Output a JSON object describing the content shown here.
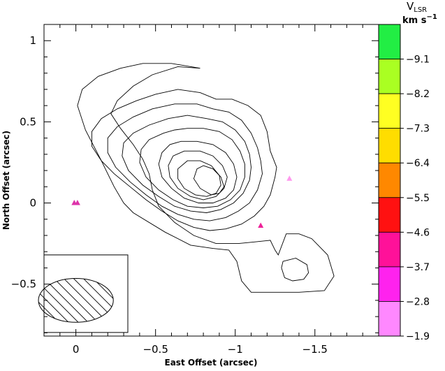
{
  "chart_data": {
    "type": "contour",
    "xlabel": "East Offset (arcsec)",
    "ylabel": "North Offset (arcsec)",
    "xlim": [
      0.2,
      -1.9
    ],
    "ylim": [
      -0.82,
      1.1
    ],
    "x_ticks": [
      0,
      -0.5,
      -1,
      -1.5
    ],
    "x_tick_labels": [
      "0",
      "−0.5",
      "−1",
      "−1.5"
    ],
    "y_ticks": [
      -0.5,
      0,
      0.5,
      1
    ],
    "y_tick_labels": [
      "−0.5",
      "0",
      "0.5",
      "1"
    ],
    "contour_peak": {
      "x": -0.87,
      "y": 0.15
    },
    "secondary_peak": {
      "x": -1.37,
      "y": -0.4
    },
    "contours": [
      {
        "level": 1,
        "points": [
          [
            -0.78,
            0.83
          ],
          [
            -0.64,
            0.84
          ],
          [
            -0.48,
            0.79
          ],
          [
            -0.36,
            0.72
          ],
          [
            -0.26,
            0.63
          ],
          [
            -0.22,
            0.55
          ],
          [
            -0.28,
            0.46
          ],
          [
            -0.36,
            0.36
          ],
          [
            -0.42,
            0.27
          ],
          [
            -0.46,
            0.18
          ],
          [
            -0.48,
            0.08
          ],
          [
            -0.52,
            -0.02
          ],
          [
            -0.62,
            -0.12
          ],
          [
            -0.74,
            -0.2
          ],
          [
            -0.88,
            -0.25
          ],
          [
            -1.02,
            -0.25
          ],
          [
            -1.12,
            -0.24
          ],
          [
            -1.22,
            -0.23
          ],
          [
            -1.25,
            -0.29
          ],
          [
            -1.27,
            -0.32
          ],
          [
            -1.32,
            -0.19
          ],
          [
            -1.4,
            -0.19
          ],
          [
            -1.48,
            -0.22
          ],
          [
            -1.58,
            -0.32
          ],
          [
            -1.62,
            -0.45
          ],
          [
            -1.56,
            -0.54
          ],
          [
            -1.4,
            -0.55
          ],
          [
            -1.1,
            -0.55
          ],
          [
            -1.04,
            -0.48
          ],
          [
            -1.01,
            -0.36
          ],
          [
            -0.96,
            -0.29
          ],
          [
            -0.86,
            -0.28
          ],
          [
            -0.72,
            -0.26
          ],
          [
            -0.56,
            -0.18
          ],
          [
            -0.36,
            -0.06
          ],
          [
            -0.3,
            0.0
          ],
          [
            -0.24,
            0.1
          ],
          [
            -0.16,
            0.26
          ],
          [
            -0.06,
            0.45
          ],
          [
            -0.01,
            0.6
          ],
          [
            -0.04,
            0.7
          ],
          [
            -0.14,
            0.78
          ],
          [
            -0.28,
            0.83
          ],
          [
            -0.42,
            0.86
          ],
          [
            -0.6,
            0.86
          ]
        ]
      },
      {
        "level": 2,
        "points": [
          [
            -0.88,
            0.64
          ],
          [
            -0.98,
            0.64
          ],
          [
            -1.08,
            0.6
          ],
          [
            -1.16,
            0.54
          ],
          [
            -1.2,
            0.44
          ],
          [
            -1.22,
            0.32
          ],
          [
            -1.26,
            0.22
          ],
          [
            -1.25,
            0.16
          ],
          [
            -1.22,
            0.05
          ],
          [
            -1.18,
            -0.02
          ],
          [
            -1.12,
            -0.08
          ],
          [
            -1.04,
            -0.13
          ],
          [
            -0.94,
            -0.16
          ],
          [
            -0.84,
            -0.17
          ],
          [
            -0.74,
            -0.15
          ],
          [
            -0.64,
            -0.11
          ],
          [
            -0.54,
            -0.05
          ],
          [
            -0.44,
            0.02
          ],
          [
            -0.34,
            0.1
          ],
          [
            -0.24,
            0.18
          ],
          [
            -0.16,
            0.26
          ],
          [
            -0.1,
            0.35
          ],
          [
            -0.1,
            0.44
          ],
          [
            -0.16,
            0.52
          ],
          [
            -0.26,
            0.58
          ],
          [
            -0.38,
            0.63
          ],
          [
            -0.5,
            0.67
          ],
          [
            -0.64,
            0.7
          ],
          [
            -0.78,
            0.68
          ]
        ]
      },
      {
        "level": 3,
        "points": [
          [
            -0.86,
            0.58
          ],
          [
            -0.96,
            0.56
          ],
          [
            -1.04,
            0.51
          ],
          [
            -1.1,
            0.43
          ],
          [
            -1.14,
            0.34
          ],
          [
            -1.16,
            0.26
          ],
          [
            -1.17,
            0.18
          ],
          [
            -1.14,
            0.08
          ],
          [
            -1.09,
            0.0
          ],
          [
            -1.02,
            -0.05
          ],
          [
            -0.94,
            -0.09
          ],
          [
            -0.84,
            -0.11
          ],
          [
            -0.74,
            -0.1
          ],
          [
            -0.64,
            -0.07
          ],
          [
            -0.54,
            -0.02
          ],
          [
            -0.44,
            0.05
          ],
          [
            -0.34,
            0.13
          ],
          [
            -0.25,
            0.22
          ],
          [
            -0.2,
            0.31
          ],
          [
            -0.2,
            0.4
          ],
          [
            -0.26,
            0.47
          ],
          [
            -0.36,
            0.53
          ],
          [
            -0.48,
            0.58
          ],
          [
            -0.62,
            0.61
          ],
          [
            -0.76,
            0.61
          ]
        ]
      },
      {
        "level": 4,
        "points": [
          [
            -0.82,
            0.52
          ],
          [
            -0.92,
            0.5
          ],
          [
            -1.0,
            0.45
          ],
          [
            -1.06,
            0.38
          ],
          [
            -1.09,
            0.3
          ],
          [
            -1.1,
            0.22
          ],
          [
            -1.09,
            0.14
          ],
          [
            -1.05,
            0.06
          ],
          [
            -0.99,
            0.0
          ],
          [
            -0.91,
            -0.04
          ],
          [
            -0.82,
            -0.06
          ],
          [
            -0.72,
            -0.05
          ],
          [
            -0.62,
            -0.02
          ],
          [
            -0.52,
            0.04
          ],
          [
            -0.42,
            0.11
          ],
          [
            -0.33,
            0.2
          ],
          [
            -0.29,
            0.29
          ],
          [
            -0.3,
            0.37
          ],
          [
            -0.36,
            0.43
          ],
          [
            -0.46,
            0.48
          ],
          [
            -0.58,
            0.52
          ],
          [
            -0.7,
            0.54
          ]
        ]
      },
      {
        "level": 5,
        "points": [
          [
            -0.7,
            0.46
          ],
          [
            -0.8,
            0.46
          ],
          [
            -0.9,
            0.44
          ],
          [
            -0.98,
            0.39
          ],
          [
            -1.03,
            0.32
          ],
          [
            -1.06,
            0.24
          ],
          [
            -1.06,
            0.16
          ],
          [
            -1.03,
            0.08
          ],
          [
            -0.97,
            0.02
          ],
          [
            -0.89,
            -0.02
          ],
          [
            -0.8,
            -0.03
          ],
          [
            -0.7,
            -0.02
          ],
          [
            -0.61,
            0.02
          ],
          [
            -0.52,
            0.08
          ],
          [
            -0.44,
            0.16
          ],
          [
            -0.4,
            0.25
          ],
          [
            -0.41,
            0.33
          ],
          [
            -0.46,
            0.39
          ],
          [
            -0.55,
            0.43
          ],
          [
            -0.62,
            0.45
          ]
        ]
      },
      {
        "level": 6,
        "points": [
          [
            -0.66,
            0.38
          ],
          [
            -0.76,
            0.38
          ],
          [
            -0.86,
            0.36
          ],
          [
            -0.94,
            0.31
          ],
          [
            -0.99,
            0.24
          ],
          [
            -1.01,
            0.16
          ],
          [
            -0.99,
            0.08
          ],
          [
            -0.94,
            0.03
          ],
          [
            -0.86,
            0.0
          ],
          [
            -0.77,
            0.0
          ],
          [
            -0.68,
            0.03
          ],
          [
            -0.6,
            0.09
          ],
          [
            -0.54,
            0.16
          ],
          [
            -0.52,
            0.24
          ],
          [
            -0.54,
            0.31
          ],
          [
            -0.59,
            0.36
          ]
        ]
      },
      {
        "level": 7,
        "points": [
          [
            -0.68,
            0.32
          ],
          [
            -0.78,
            0.32
          ],
          [
            -0.86,
            0.29
          ],
          [
            -0.92,
            0.23
          ],
          [
            -0.95,
            0.16
          ],
          [
            -0.93,
            0.09
          ],
          [
            -0.88,
            0.04
          ],
          [
            -0.8,
            0.02
          ],
          [
            -0.72,
            0.04
          ],
          [
            -0.64,
            0.09
          ],
          [
            -0.59,
            0.16
          ],
          [
            -0.58,
            0.23
          ],
          [
            -0.61,
            0.29
          ]
        ]
      },
      {
        "level": 8,
        "points": [
          [
            -0.7,
            0.26
          ],
          [
            -0.78,
            0.26
          ],
          [
            -0.85,
            0.23
          ],
          [
            -0.9,
            0.17
          ],
          [
            -0.91,
            0.11
          ],
          [
            -0.88,
            0.06
          ],
          [
            -0.82,
            0.04
          ],
          [
            -0.75,
            0.05
          ],
          [
            -0.68,
            0.09
          ],
          [
            -0.64,
            0.15
          ],
          [
            -0.64,
            0.21
          ]
        ]
      },
      {
        "level": 9,
        "points": [
          [
            -0.8,
            0.23
          ],
          [
            -0.86,
            0.21
          ],
          [
            -0.91,
            0.16
          ],
          [
            -0.93,
            0.1
          ],
          [
            -0.9,
            0.06
          ],
          [
            -0.85,
            0.05
          ],
          [
            -0.78,
            0.09
          ],
          [
            -0.74,
            0.15
          ],
          [
            -0.76,
            0.21
          ]
        ]
      },
      {
        "level": 10,
        "points": [
          [
            -1.3,
            -0.36
          ],
          [
            -1.38,
            -0.34
          ],
          [
            -1.45,
            -0.38
          ],
          [
            -1.46,
            -0.43
          ],
          [
            -1.43,
            -0.47
          ],
          [
            -1.36,
            -0.48
          ],
          [
            -1.31,
            -0.46
          ],
          [
            -1.29,
            -0.4
          ]
        ]
      }
    ],
    "markers": [
      {
        "x": -0.01,
        "y": 0.0,
        "color": "#dd33aa"
      },
      {
        "x": 0.01,
        "y": 0.0,
        "color": "#dd33aa"
      },
      {
        "x": -1.16,
        "y": -0.14,
        "color": "#ee2299"
      },
      {
        "x": -1.34,
        "y": 0.15,
        "color": "#ff99ee"
      }
    ],
    "beam": {
      "center_x": 0.0,
      "center_y": -0.6,
      "width_arcsec": 0.47,
      "height_arcsec": 0.27
    },
    "colorbar": {
      "title": "V",
      "subscript": "LSR",
      "unit": "km s",
      "unit_exponent": "−1",
      "tick_labels": [
        "−9.1",
        "−8.2",
        "−7.3",
        "−6.4",
        "−5.5",
        "−4.6",
        "−3.7",
        "−2.8",
        "−1.9"
      ],
      "colors": [
        "#22ee44",
        "#aaff22",
        "#ffff22",
        "#ffdd00",
        "#ff8800",
        "#ff1111",
        "#ff1199",
        "#ff22ee",
        "#ff88ff"
      ]
    }
  }
}
